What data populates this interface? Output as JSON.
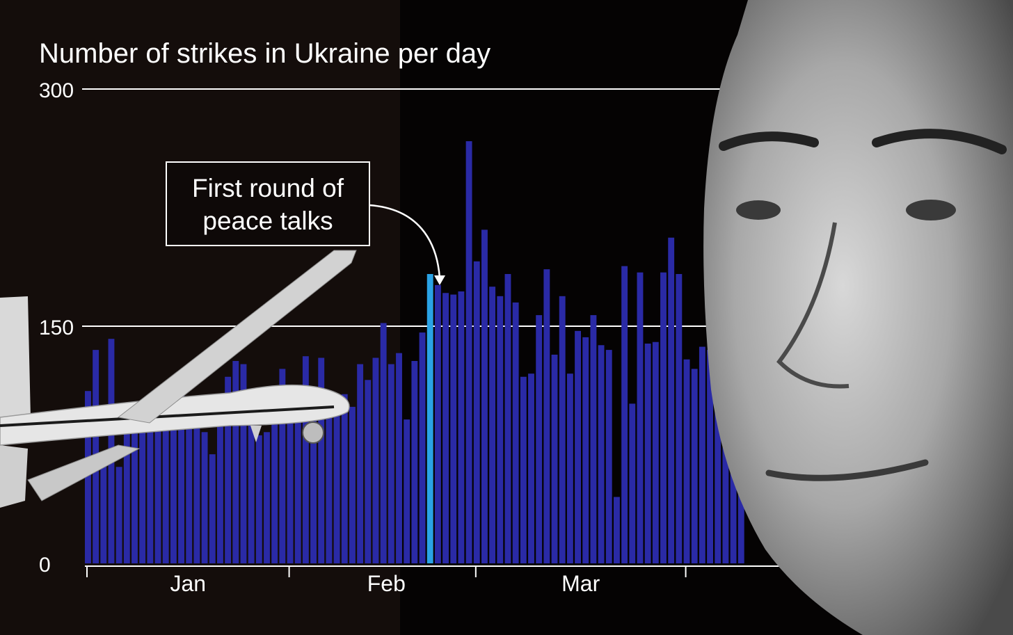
{
  "chart_data": {
    "type": "bar",
    "title": "Number of strikes in Ukraine per day",
    "xlabel": "",
    "ylabel": "",
    "ylim": [
      0,
      300
    ],
    "yticks": [
      "0",
      "150",
      "300"
    ],
    "month_labels": [
      "Jan",
      "Feb",
      "Mar"
    ],
    "grid": "horizontal at 150 and 300",
    "annotation": {
      "line1": "First round of",
      "line2": "peace talks",
      "day_index": 44
    },
    "colors": {
      "bar": "#2a2aa6",
      "highlight": "#2aa3e6",
      "text": "#ffffff",
      "grid": "#ffffff"
    },
    "values": [
      109,
      135,
      63,
      142,
      61,
      98,
      101,
      99,
      102,
      107,
      108,
      111,
      110,
      92,
      91,
      83,
      69,
      97,
      118,
      128,
      126,
      108,
      81,
      83,
      106,
      123,
      93,
      110,
      131,
      96,
      130,
      105,
      101,
      107,
      99,
      126,
      116,
      130,
      152,
      126,
      133,
      91,
      128,
      146,
      183,
      176,
      171,
      170,
      172,
      267,
      191,
      211,
      175,
      169,
      183,
      165,
      118,
      120,
      157,
      186,
      132,
      169,
      120,
      147,
      143,
      157,
      138,
      135,
      42,
      188,
      101,
      184,
      139,
      140,
      184,
      206,
      183,
      129,
      123,
      137,
      135,
      109,
      92,
      130,
      121
    ]
  },
  "overlays": {
    "drone": "drone-photo",
    "portrait": "portrait-photo"
  }
}
